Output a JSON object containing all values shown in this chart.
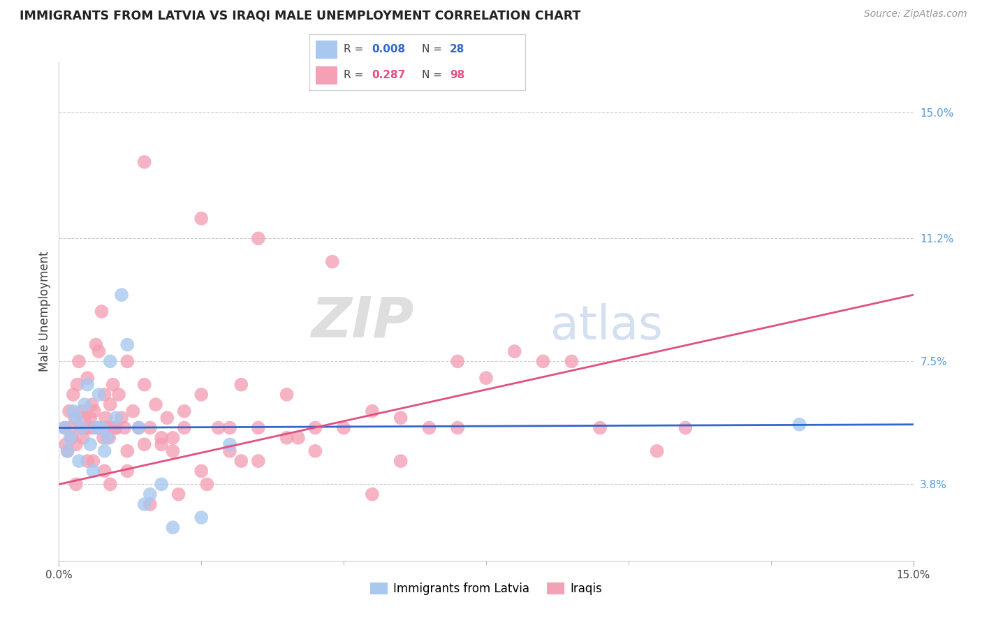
{
  "title": "IMMIGRANTS FROM LATVIA VS IRAQI MALE UNEMPLOYMENT CORRELATION CHART",
  "source": "Source: ZipAtlas.com",
  "ylabel": "Male Unemployment",
  "ytick_labels": [
    "3.8%",
    "7.5%",
    "11.2%",
    "15.0%"
  ],
  "ytick_values": [
    3.8,
    7.5,
    11.2,
    15.0
  ],
  "xlim": [
    0.0,
    15.0
  ],
  "ylim": [
    1.5,
    16.5
  ],
  "legend_blue_R": "0.008",
  "legend_blue_N": "28",
  "legend_pink_R": "0.287",
  "legend_pink_N": "98",
  "legend_blue_label": "Immigrants from Latvia",
  "legend_pink_label": "Iraqis",
  "watermark_zip": "ZIP",
  "watermark_atlas": "atlas",
  "blue_color": "#a8c8f0",
  "pink_color": "#f4a0b5",
  "line_blue": "#3366cc",
  "line_pink": "#e05080",
  "blue_x": [
    0.1,
    0.15,
    0.2,
    0.25,
    0.3,
    0.35,
    0.4,
    0.45,
    0.5,
    0.55,
    0.6,
    0.65,
    0.7,
    0.75,
    0.8,
    0.85,
    0.9,
    1.0,
    1.1,
    1.2,
    1.4,
    1.5,
    1.6,
    1.8,
    2.0,
    2.5,
    3.0,
    13.0
  ],
  "blue_y": [
    5.5,
    4.8,
    5.2,
    6.0,
    5.8,
    4.5,
    5.5,
    6.2,
    6.8,
    5.0,
    4.2,
    5.5,
    6.5,
    5.5,
    4.8,
    5.2,
    7.5,
    5.8,
    9.5,
    8.0,
    5.5,
    3.2,
    3.5,
    3.8,
    2.5,
    2.8,
    5.0,
    5.6
  ],
  "pink_x": [
    0.1,
    0.12,
    0.15,
    0.18,
    0.2,
    0.22,
    0.25,
    0.28,
    0.3,
    0.32,
    0.35,
    0.38,
    0.4,
    0.42,
    0.45,
    0.48,
    0.5,
    0.52,
    0.55,
    0.58,
    0.6,
    0.62,
    0.65,
    0.68,
    0.7,
    0.72,
    0.75,
    0.78,
    0.8,
    0.82,
    0.85,
    0.88,
    0.9,
    0.92,
    0.95,
    0.98,
    1.0,
    1.05,
    1.1,
    1.15,
    1.2,
    1.3,
    1.4,
    1.5,
    1.6,
    1.7,
    1.8,
    1.9,
    2.0,
    2.2,
    2.5,
    2.8,
    3.0,
    3.2,
    3.5,
    4.0,
    4.5,
    5.0,
    5.5,
    6.0,
    6.5,
    7.0,
    7.5,
    8.0,
    9.0,
    10.5,
    1.5,
    2.5,
    3.5,
    4.8,
    0.5,
    0.8,
    1.0,
    1.2,
    1.5,
    1.8,
    2.0,
    2.2,
    2.5,
    3.0,
    3.5,
    4.0,
    4.5,
    5.5,
    6.0,
    7.0,
    8.5,
    9.5,
    11.0,
    0.3,
    0.6,
    0.9,
    1.2,
    1.6,
    2.1,
    2.6,
    3.2,
    4.2
  ],
  "pink_y": [
    5.5,
    5.0,
    4.8,
    6.0,
    5.5,
    5.2,
    6.5,
    5.8,
    5.0,
    6.8,
    7.5,
    5.5,
    6.0,
    5.2,
    5.8,
    5.5,
    7.0,
    5.5,
    5.8,
    6.2,
    5.5,
    6.0,
    8.0,
    5.5,
    7.8,
    5.5,
    9.0,
    5.2,
    6.5,
    5.8,
    5.5,
    5.2,
    6.2,
    5.5,
    6.8,
    5.5,
    5.5,
    6.5,
    5.8,
    5.5,
    7.5,
    6.0,
    5.5,
    6.8,
    5.5,
    6.2,
    5.0,
    5.8,
    5.2,
    6.0,
    6.5,
    5.5,
    5.5,
    6.8,
    5.5,
    6.5,
    5.5,
    5.5,
    6.0,
    5.8,
    5.5,
    7.5,
    7.0,
    7.8,
    7.5,
    4.8,
    13.5,
    11.8,
    11.2,
    10.5,
    4.5,
    4.2,
    5.5,
    4.8,
    5.0,
    5.2,
    4.8,
    5.5,
    4.2,
    4.8,
    4.5,
    5.2,
    4.8,
    3.5,
    4.5,
    5.5,
    7.5,
    5.5,
    5.5,
    3.8,
    4.5,
    3.8,
    4.2,
    3.2,
    3.5,
    3.8,
    4.5,
    5.2
  ],
  "blue_line_x": [
    0.0,
    15.0
  ],
  "blue_line_y": [
    5.5,
    5.6
  ],
  "pink_line_x": [
    0.0,
    15.0
  ],
  "pink_line_y": [
    3.8,
    9.5
  ]
}
